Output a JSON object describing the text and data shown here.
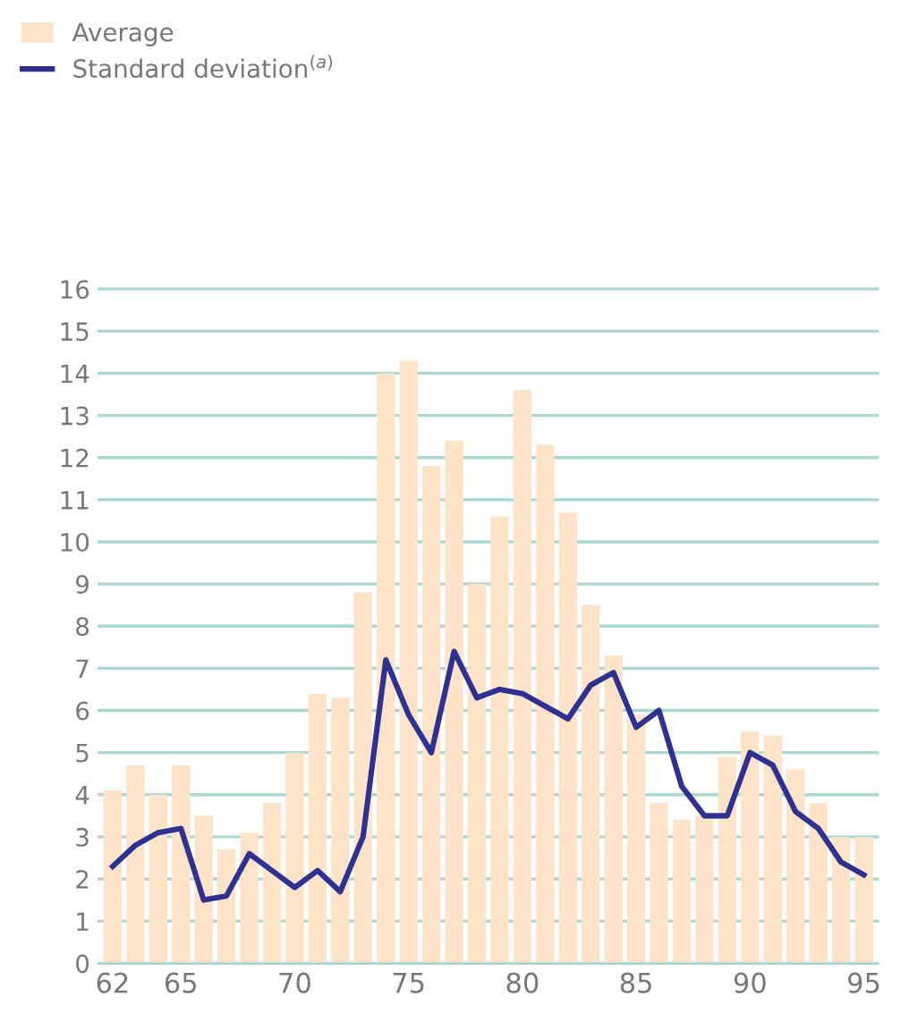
{
  "chart_data": {
    "type": "bar",
    "categories": [
      "62",
      null,
      null,
      "65",
      null,
      null,
      null,
      null,
      "70",
      null,
      null,
      null,
      null,
      "75",
      null,
      null,
      null,
      null,
      "80",
      null,
      null,
      null,
      null,
      "85",
      null,
      null,
      null,
      null,
      "90",
      null,
      null,
      null,
      null,
      "95"
    ],
    "series": [
      {
        "name": "Average",
        "color": "#fde3c8",
        "values": [
          4.1,
          4.7,
          4.0,
          4.7,
          3.5,
          2.7,
          3.1,
          3.8,
          5.0,
          6.4,
          6.3,
          8.8,
          14.0,
          14.3,
          11.8,
          12.4,
          9.0,
          10.6,
          13.6,
          12.3,
          10.7,
          8.5,
          7.3,
          5.9,
          3.8,
          3.4,
          3.5,
          4.9,
          5.5,
          5.4,
          4.6,
          3.8,
          3.0,
          3.0
        ]
      },
      {
        "name": "Standard deviation$^{(a)}$",
        "color": "#2e3192",
        "type": "line",
        "values": [
          2.3,
          2.8,
          3.1,
          3.2,
          1.5,
          1.6,
          2.6,
          2.2,
          1.8,
          2.2,
          1.7,
          3.0,
          7.2,
          5.9,
          5.0,
          7.4,
          6.3,
          6.5,
          6.4,
          6.1,
          5.8,
          6.6,
          6.9,
          5.6,
          6.0,
          4.2,
          3.5,
          3.5,
          5.0,
          4.7,
          3.6,
          3.2,
          2.4,
          2.1
        ]
      }
    ],
    "ylim": [
      0,
      16
    ],
    "yticks": [
      0,
      1,
      2,
      3,
      4,
      5,
      6,
      7,
      8,
      9,
      10,
      11,
      12,
      13,
      14,
      15,
      16
    ],
    "grid": "y",
    "legend": "top left",
    "marker": "none",
    "line_style": "solid"
  }
}
